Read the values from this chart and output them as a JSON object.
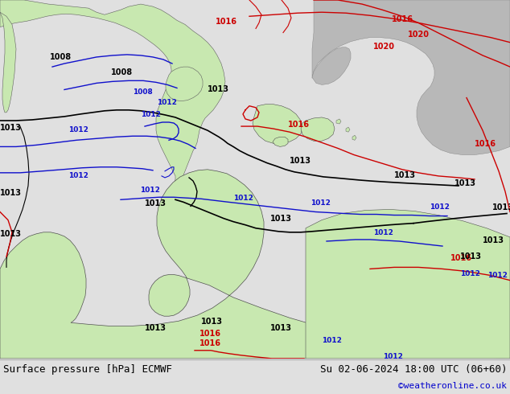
{
  "title_left": "Surface pressure [hPa] ECMWF",
  "title_right": "Su 02-06-2024 18:00 UTC (06+60)",
  "credit": "©weatheronline.co.uk",
  "bg_color": "#e0e0e0",
  "land_green": "#c8e8b0",
  "land_gray": "#b8b8b8",
  "footer_bg": "#d8d8d8",
  "figsize": [
    6.34,
    4.9
  ],
  "dpi": 100
}
